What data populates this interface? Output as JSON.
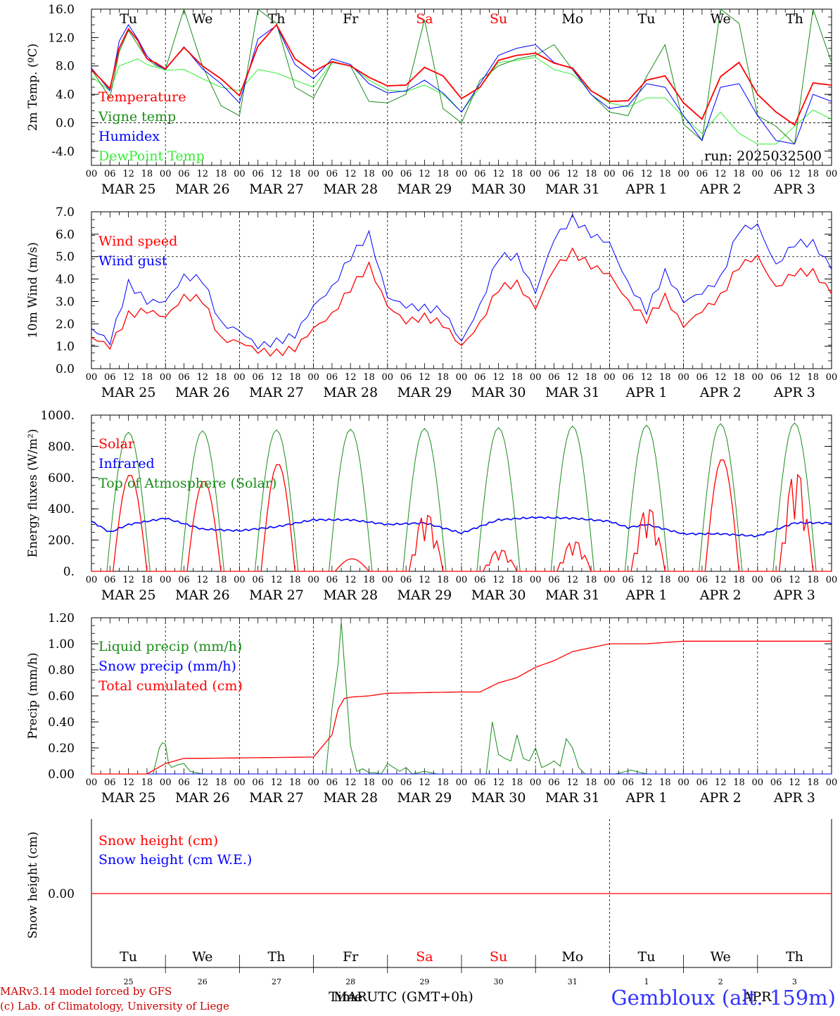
{
  "header_info": {
    "run_label": "run: 2025032500",
    "footer_model": "MARv3.14 model forced by GFS",
    "footer_lab": "(c) Lab. of Climatology, University of Liege",
    "time_axis_title": "Time UTC (GMT+0h)",
    "month_overlay_left": "MAR",
    "month_overlay_right": "APR",
    "station": "Gembloux (alt. 159m)"
  },
  "days": {
    "weekdays": [
      "Tu",
      "We",
      "Th",
      "Fr",
      "Sa",
      "Su",
      "Mo",
      "Tu",
      "We",
      "Th"
    ],
    "weekend_color": "#ff0000",
    "weekday_color": "#000000",
    "weekend_flags": [
      false,
      false,
      false,
      false,
      true,
      true,
      false,
      false,
      false,
      false
    ],
    "date_labels": [
      "MAR 25",
      "MAR 26",
      "MAR 27",
      "MAR 28",
      "MAR 29",
      "MAR 30",
      "MAR 31",
      "APR  1",
      "APR  2",
      "APR  3"
    ],
    "day_numbers": [
      "25",
      "26",
      "27",
      "28",
      "29",
      "30",
      "31",
      "1",
      "2",
      "3"
    ],
    "hour_labels": [
      "00",
      "06",
      "12",
      "18"
    ],
    "final_hour": "00"
  },
  "chart_data": [
    {
      "type": "line",
      "id": "temp",
      "ylabel": "2m Temp. (ºC)",
      "ylim": [
        -6,
        16
      ],
      "yticks": [
        "-4.0",
        "0.0",
        "4.0",
        "8.0",
        "12.0",
        "16.0"
      ],
      "ytick_values": [
        -4,
        0,
        4,
        8,
        12,
        16
      ],
      "ref_line": 0,
      "x_hours": [
        0,
        6,
        9,
        12,
        15,
        18,
        21,
        24,
        30,
        36,
        42,
        48,
        54,
        60,
        66,
        72,
        78,
        84,
        90,
        96,
        102,
        108,
        114,
        120,
        126,
        132,
        138,
        144,
        150,
        156,
        162,
        168,
        174,
        180,
        186,
        192,
        198,
        204,
        210,
        216,
        222,
        228,
        234,
        240
      ],
      "series": [
        {
          "name": "Temperature",
          "color": "#ff0000",
          "width": 1.8,
          "values": [
            7.5,
            4.8,
            10.5,
            13.2,
            11.6,
            9.0,
            8.4,
            7.6,
            10.6,
            8.0,
            6.2,
            3.8,
            10.8,
            13.8,
            9.0,
            7.2,
            8.6,
            8.0,
            6.4,
            5.2,
            5.3,
            7.8,
            6.6,
            3.4,
            5.0,
            8.8,
            9.5,
            9.8,
            8.4,
            7.7,
            4.5,
            3.0,
            3.1,
            6.0,
            6.6,
            2.8,
            0.5,
            6.5,
            8.5,
            4.0,
            1.5,
            -0.3,
            5.6,
            5.3
          ]
        },
        {
          "name": "Vigne temp",
          "color": "#1a8c1a",
          "width": 1.0,
          "values": [
            7.5,
            3.5,
            10.0,
            13.0,
            11.0,
            9.0,
            8.0,
            7.6,
            16.0,
            8.0,
            2.4,
            1.0,
            16.0,
            14.0,
            5.0,
            3.5,
            8.5,
            8.0,
            3.0,
            2.8,
            4.0,
            14.5,
            2.0,
            0.0,
            6.0,
            8.0,
            9.0,
            9.5,
            11.0,
            7.5,
            4.0,
            1.5,
            1.0,
            6.5,
            11.0,
            -0.2,
            -2.5,
            16.0,
            14.0,
            1.0,
            -0.5,
            -3.0,
            16.0,
            8.5
          ]
        },
        {
          "name": "Humidex",
          "color": "#0000ff",
          "width": 1.0,
          "values": [
            7.7,
            4.5,
            11.5,
            13.8,
            11.8,
            9.4,
            8.2,
            7.5,
            10.7,
            7.6,
            5.5,
            2.8,
            11.8,
            13.7,
            8.2,
            6.2,
            9.0,
            8.2,
            5.5,
            4.2,
            4.5,
            6.0,
            4.2,
            1.5,
            5.5,
            9.5,
            10.5,
            11.0,
            8.5,
            7.6,
            4.0,
            2.0,
            2.4,
            5.5,
            5.0,
            1.0,
            -2.5,
            5.0,
            5.5,
            1.0,
            -2.5,
            -3.0,
            4.0,
            3.0
          ]
        },
        {
          "name": "DewPoint Temp",
          "color": "#33ee33",
          "width": 1.0,
          "values": [
            6.5,
            4.5,
            8.0,
            8.5,
            9.0,
            8.2,
            7.8,
            7.4,
            7.5,
            6.2,
            5.0,
            4.5,
            7.5,
            7.0,
            6.0,
            5.0,
            8.5,
            8.0,
            6.0,
            4.6,
            4.4,
            5.3,
            4.0,
            1.5,
            5.0,
            8.5,
            8.8,
            9.2,
            7.5,
            6.8,
            4.5,
            2.8,
            2.2,
            3.5,
            3.5,
            0.8,
            -1.5,
            1.5,
            -1.5,
            -3.0,
            -3.0,
            -0.5,
            1.8,
            0.5
          ]
        }
      ],
      "legend_placement": "top-left"
    },
    {
      "type": "line",
      "id": "wind",
      "ylabel": "10m Wind (m/s)",
      "ylim": [
        0,
        7
      ],
      "yticks": [
        "0.0",
        "1.0",
        "2.0",
        "3.0",
        "4.0",
        "5.0",
        "6.0",
        "7.0"
      ],
      "ytick_values": [
        0,
        1,
        2,
        3,
        4,
        5,
        6,
        7
      ],
      "ref_line": 5,
      "x_hours": [
        0,
        6,
        12,
        18,
        24,
        30,
        36,
        42,
        48,
        54,
        60,
        66,
        72,
        78,
        84,
        90,
        96,
        102,
        108,
        114,
        120,
        126,
        132,
        138,
        144,
        150,
        156,
        162,
        168,
        174,
        180,
        186,
        192,
        198,
        204,
        210,
        216,
        222,
        228,
        234,
        240
      ],
      "series": [
        {
          "name": "Wind speed",
          "color": "#ff0000",
          "width": 1.3,
          "values": [
            1.4,
            1.0,
            2.4,
            2.6,
            2.3,
            3.2,
            3.1,
            1.3,
            1.2,
            0.8,
            0.7,
            0.9,
            1.8,
            2.4,
            3.6,
            4.6,
            2.8,
            2.1,
            2.3,
            2.0,
            1.0,
            2.0,
            3.6,
            3.8,
            2.7,
            4.5,
            5.2,
            4.6,
            4.2,
            3.0,
            2.2,
            3.2,
            1.9,
            2.6,
            3.2,
            4.6,
            5.0,
            3.6,
            4.3,
            4.3,
            3.4
          ]
        },
        {
          "name": "Wind gust",
          "color": "#0000ff",
          "width": 1.0,
          "values": [
            1.8,
            1.2,
            3.8,
            3.0,
            3.0,
            4.1,
            4.0,
            2.0,
            1.7,
            1.0,
            1.2,
            1.5,
            2.8,
            3.6,
            5.0,
            6.0,
            3.2,
            2.8,
            2.7,
            2.6,
            1.2,
            2.8,
            5.0,
            5.0,
            3.4,
            5.8,
            6.7,
            6.0,
            5.6,
            3.8,
            2.6,
            4.3,
            3.0,
            3.4,
            4.0,
            6.2,
            6.4,
            4.6,
            5.6,
            5.6,
            4.5
          ]
        }
      ],
      "legend_placement": "top-left"
    },
    {
      "type": "line",
      "id": "energy",
      "ylabel": "Energy fluxes (W/m²)",
      "ylim": [
        0,
        1000
      ],
      "yticks": [
        "0.",
        "200.",
        "400.",
        "600.",
        "800.",
        "1000."
      ],
      "ytick_values": [
        0,
        200,
        400,
        600,
        800,
        1000
      ],
      "toa_peaks": [
        890,
        900,
        905,
        910,
        915,
        920,
        930,
        935,
        945,
        950
      ],
      "solar_peaks": [
        620,
        580,
        690,
        80,
        400,
        150,
        210,
        440,
        720,
        690
      ],
      "solar_profile": [
        "smooth",
        "smooth",
        "smooth",
        "low",
        "spiky",
        "spiky",
        "spiky",
        "spiky",
        "smooth",
        "spiky"
      ],
      "infrared_hours": [
        0,
        6,
        12,
        24,
        36,
        48,
        60,
        72,
        84,
        96,
        108,
        120,
        132,
        144,
        156,
        168,
        174,
        180,
        192,
        204,
        216,
        228,
        240
      ],
      "infrared_values": [
        320,
        250,
        300,
        340,
        270,
        260,
        285,
        330,
        330,
        300,
        310,
        245,
        330,
        345,
        340,
        320,
        280,
        300,
        240,
        240,
        225,
        310,
        310
      ],
      "series": [
        {
          "name": "Solar",
          "color": "#ff0000"
        },
        {
          "name": "Infrared",
          "color": "#0000ff"
        },
        {
          "name": "Top of Atmosphere (Solar)",
          "color": "#1a8c1a"
        }
      ],
      "legend_placement": "top-left"
    },
    {
      "type": "line",
      "id": "precip",
      "ylabel": "Precip (mm/h)",
      "ylim": [
        0,
        1.2
      ],
      "yticks": [
        "0.00",
        "0.20",
        "0.40",
        "0.60",
        "0.80",
        "1.00",
        "1.20"
      ],
      "ytick_values": [
        0,
        0.2,
        0.4,
        0.6,
        0.8,
        1.0,
        1.2
      ],
      "liquid_hours": [
        0,
        20,
        22,
        23,
        24,
        25,
        26,
        28,
        30,
        32,
        36,
        48,
        60,
        70,
        72,
        76,
        78,
        80,
        81,
        82,
        84,
        86,
        88,
        90,
        92,
        94,
        96,
        100,
        102,
        104,
        108,
        112,
        120,
        128,
        130,
        132,
        134,
        136,
        138,
        140,
        142,
        144,
        146,
        148,
        150,
        152,
        154,
        156,
        158,
        160,
        170,
        175,
        180,
        185,
        200,
        240
      ],
      "liquid_values": [
        0,
        0,
        0.2,
        0.24,
        0.23,
        0.08,
        0.05,
        0.07,
        0.08,
        0.02,
        0,
        0,
        0,
        0,
        0,
        0,
        0.5,
        0.85,
        1.17,
        0.85,
        0.22,
        0.02,
        0.04,
        0.01,
        0.01,
        0,
        0.08,
        0.02,
        0.05,
        0,
        0.02,
        0,
        0,
        0,
        0.4,
        0.15,
        0.12,
        0.1,
        0.3,
        0.12,
        0.1,
        0.2,
        0.05,
        0.07,
        0.1,
        0.06,
        0.27,
        0.2,
        0.05,
        0,
        0,
        0.03,
        0,
        0,
        0,
        0
      ],
      "cumulated_hours": [
        0,
        18,
        24,
        30,
        36,
        72,
        78,
        80,
        82,
        84,
        90,
        96,
        120,
        126,
        132,
        138,
        144,
        150,
        156,
        168,
        180,
        192,
        240
      ],
      "cumulated_values": [
        0,
        0,
        0.08,
        0.12,
        0.12,
        0.13,
        0.3,
        0.5,
        0.58,
        0.59,
        0.6,
        0.62,
        0.63,
        0.63,
        0.7,
        0.74,
        0.82,
        0.87,
        0.94,
        1.0,
        1.0,
        1.02,
        1.02
      ],
      "series": [
        {
          "name": "Liquid precip (mm/h)",
          "color": "#1a8c1a"
        },
        {
          "name": "Snow precip (mm/h)",
          "color": "#0000ff"
        },
        {
          "name": "Total cumulated (cm)",
          "color": "#ff0000"
        }
      ],
      "legend_placement": "top-left"
    },
    {
      "type": "line",
      "id": "snow",
      "ylabel": "Snow height (cm)",
      "yticks": [
        "0.00"
      ],
      "ytick_values": [
        0
      ],
      "snow_value": 0,
      "series": [
        {
          "name": "Snow height (cm)",
          "color": "#ff0000"
        },
        {
          "name": "Snow height (cm W.E.)",
          "color": "#0000ff"
        }
      ],
      "legend_placement": "top-left"
    }
  ]
}
